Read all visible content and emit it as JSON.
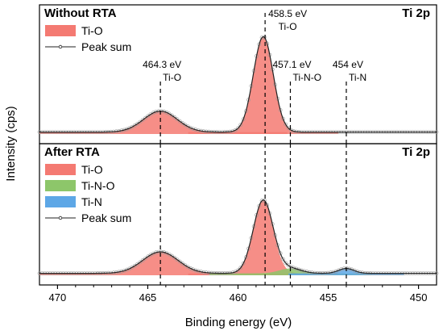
{
  "chart_data": {
    "type": "line",
    "xlabel": "Binding energy (eV)",
    "ylabel": "Intensity (cps)",
    "x_reversed": true,
    "xlim": [
      471,
      449
    ],
    "x_ticks": [
      470,
      465,
      460,
      455,
      450
    ],
    "reference_lines": [
      464.3,
      458.5,
      457.1,
      454
    ],
    "colors": {
      "Ti-O": "#f47a72",
      "Ti-N-O": "#8dc66a",
      "Ti-N": "#5da7e6",
      "Peak sum": "#222222",
      "data_markers": "#999999"
    },
    "panels": [
      {
        "title": "Without RTA",
        "corner_label": "Ti 2p",
        "legend": [
          "Ti-O",
          "Peak sum"
        ],
        "ylim": [
          0,
          1.15
        ],
        "baseline": 0.02,
        "peaks": [
          {
            "name": "Ti-O",
            "center": 464.3,
            "height": 0.22,
            "fwhm": 2.2
          },
          {
            "name": "Ti-O",
            "center": 458.6,
            "height": 1.0,
            "fwhm": 1.3
          }
        ],
        "annotations": [
          {
            "x": 464.3,
            "energy": "464.3 eV",
            "species": "Ti-O"
          },
          {
            "x": 458.5,
            "energy": "458.5 eV",
            "species": "Ti-O"
          },
          {
            "x": 457.1,
            "energy": "457.1 eV",
            "species": "Ti-N-O"
          },
          {
            "x": 454,
            "energy": "454 eV",
            "species": "Ti-N"
          }
        ]
      },
      {
        "title": "After RTA",
        "corner_label": "Ti 2p",
        "legend": [
          "Ti-O",
          "Ti-N-O",
          "Ti-N",
          "Peak sum"
        ],
        "ylim": [
          0,
          1.15
        ],
        "baseline": 0.02,
        "peaks": [
          {
            "name": "Ti-O",
            "center": 464.3,
            "height": 0.22,
            "fwhm": 2.3
          },
          {
            "name": "Ti-O",
            "center": 458.6,
            "height": 0.75,
            "fwhm": 1.3
          },
          {
            "name": "Ti-N-O",
            "center": 457.1,
            "height": 0.05,
            "fwhm": 1.4
          },
          {
            "name": "Ti-N",
            "center": 454.0,
            "height": 0.05,
            "fwhm": 1.0
          }
        ],
        "annotations": []
      }
    ]
  }
}
